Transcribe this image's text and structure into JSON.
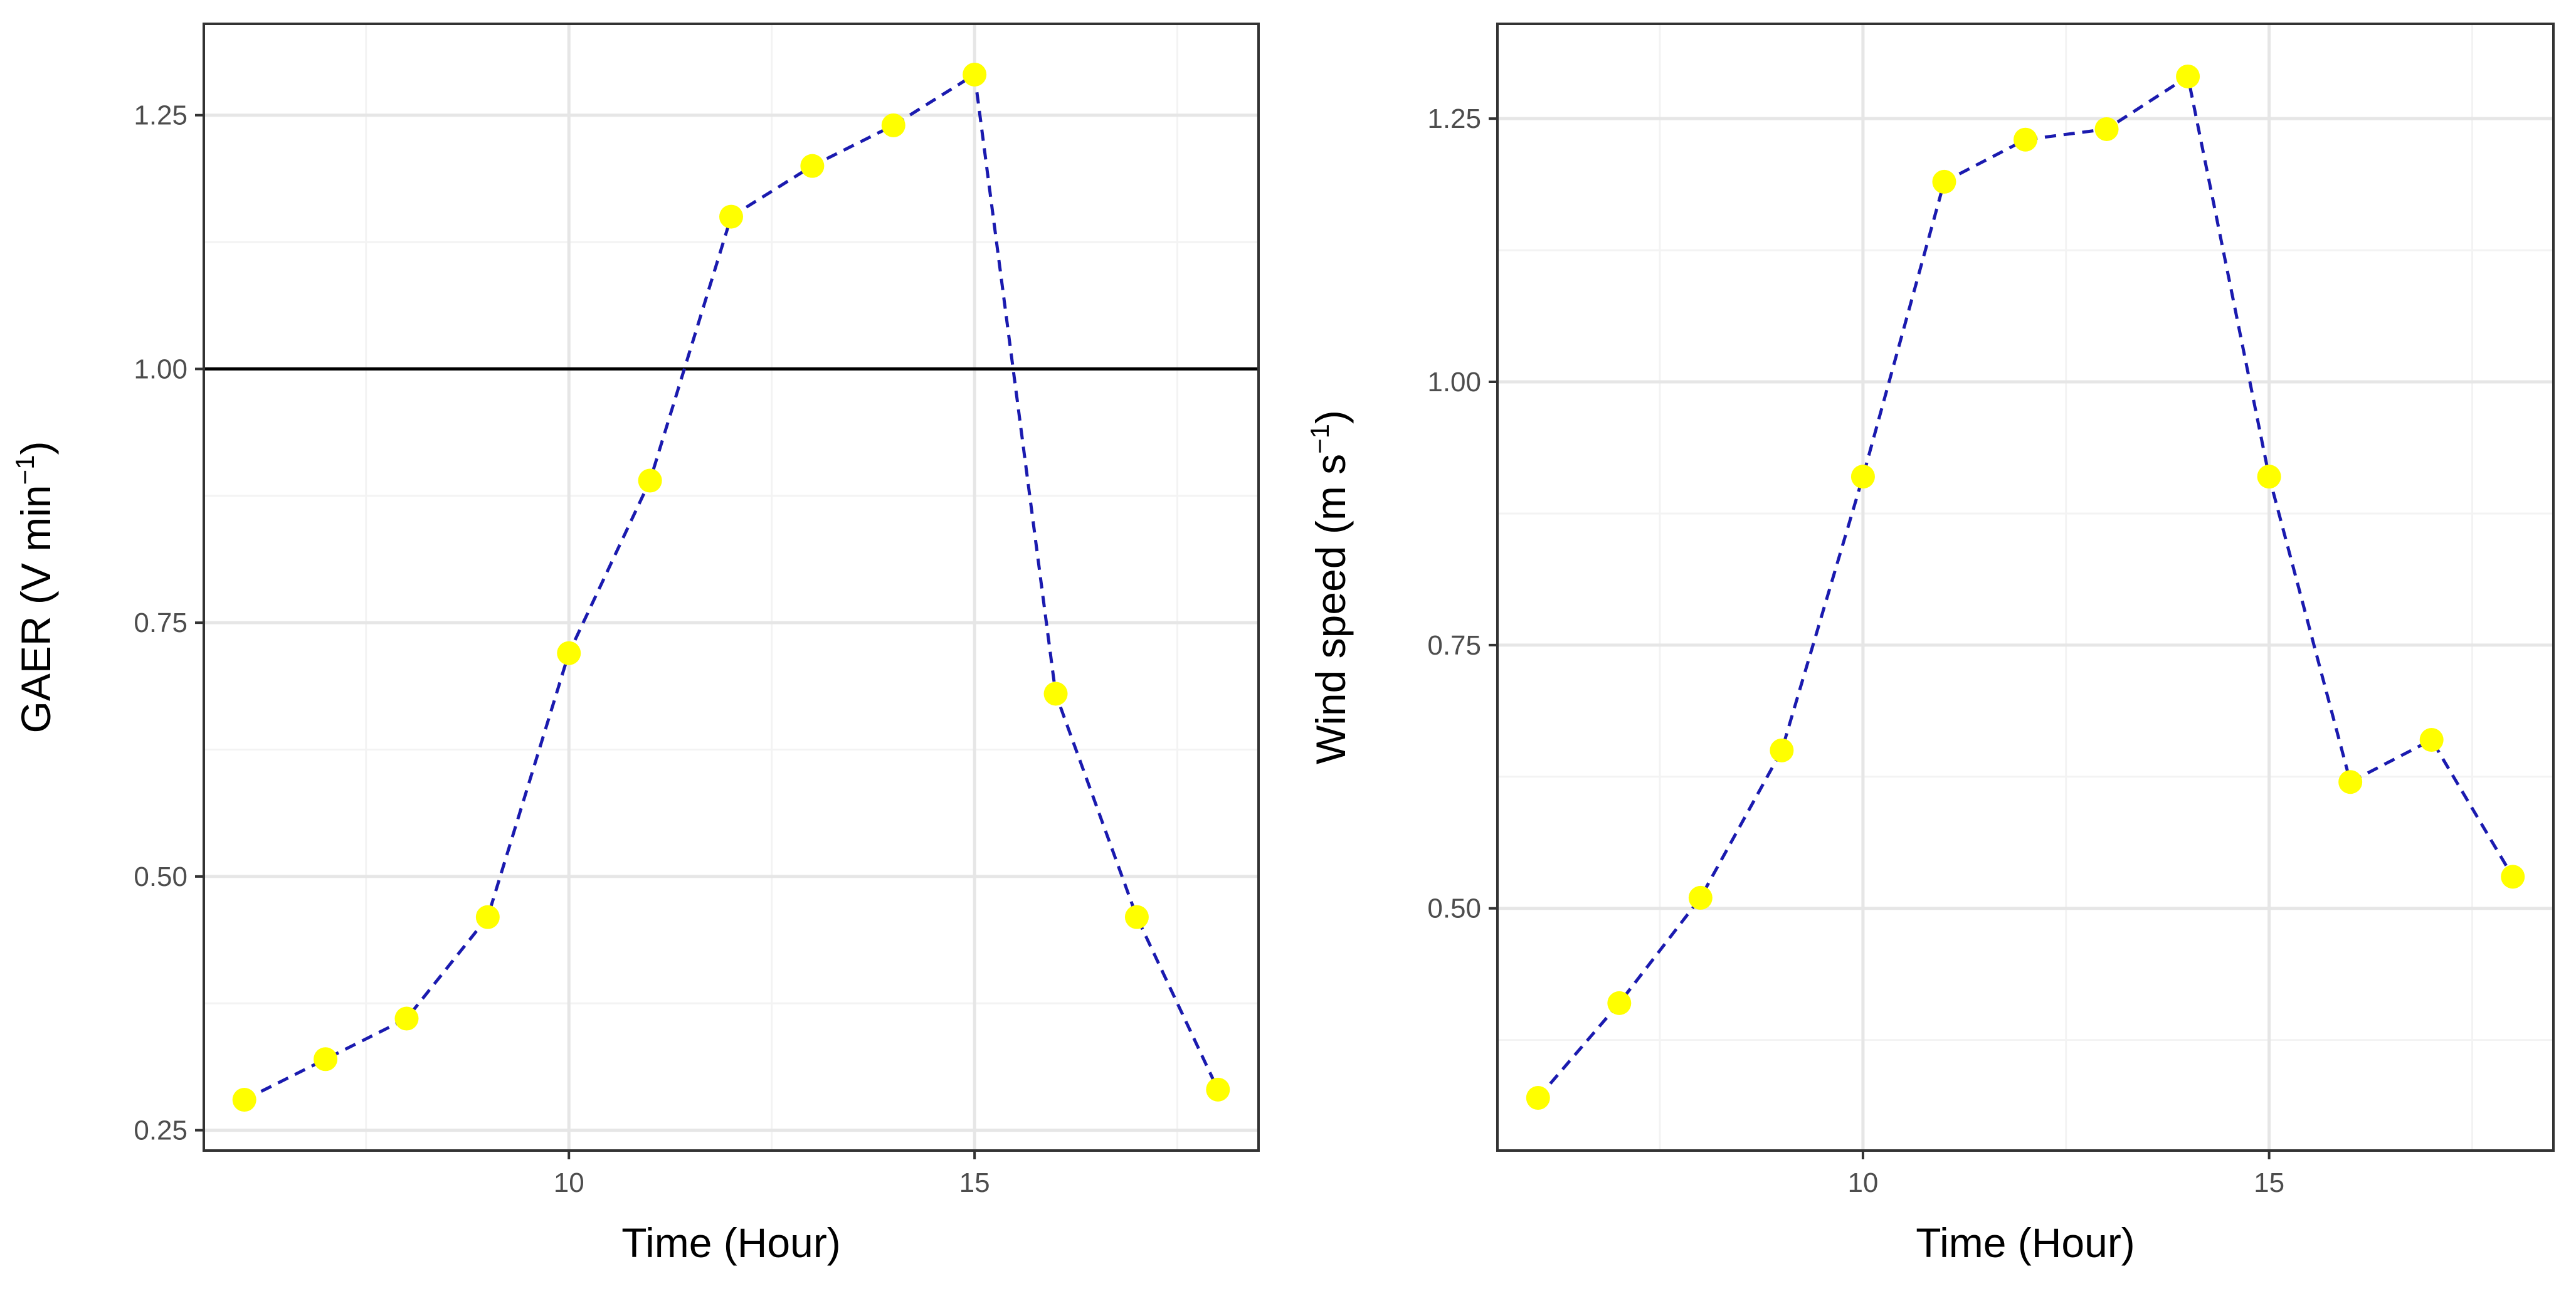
{
  "colors": {
    "line": "#1a1aaf",
    "point": "#ffff00",
    "grid_major": "#e6e6e6",
    "grid_minor": "#f3f3f3",
    "panel_border": "#333333",
    "reference_line": "#000000"
  },
  "chart_data": [
    {
      "type": "line",
      "title": "",
      "xlabel": "Time (Hour)",
      "ylabel": {
        "text": "GAER (V min",
        "sup": "−1",
        "close": ")"
      },
      "x": [
        6,
        7,
        8,
        9,
        10,
        11,
        12,
        13,
        14,
        15,
        16,
        17,
        18
      ],
      "series": [
        {
          "name": "GAER",
          "values": [
            0.28,
            0.32,
            0.36,
            0.46,
            0.72,
            0.89,
            1.15,
            1.2,
            1.24,
            1.29,
            0.68,
            0.46,
            0.29
          ]
        }
      ],
      "xlim": [
        5.5,
        18.5
      ],
      "ylim": [
        0.23,
        1.34
      ],
      "xticks": [
        10,
        15
      ],
      "xtick_labels": [
        "10",
        "15"
      ],
      "xminor": [
        7.5,
        12.5,
        17.5
      ],
      "yticks": [
        0.25,
        0.5,
        0.75,
        1.0,
        1.25
      ],
      "ytick_labels": [
        "0.25",
        "0.50",
        "0.75",
        "1.00",
        "1.25"
      ],
      "yminor": [
        0.375,
        0.625,
        0.875,
        1.125
      ],
      "hline": 1.0,
      "grid": true
    },
    {
      "type": "line",
      "title": "",
      "xlabel": "Time (Hour)",
      "ylabel": {
        "text": "Wind speed (m s",
        "sup": "−1",
        "close": ")"
      },
      "x": [
        6,
        7,
        8,
        9,
        10,
        11,
        12,
        13,
        14,
        15,
        16,
        17,
        18
      ],
      "series": [
        {
          "name": "Wind speed",
          "values": [
            0.32,
            0.41,
            0.51,
            0.65,
            0.91,
            1.19,
            1.23,
            1.24,
            1.29,
            0.91,
            0.62,
            0.66,
            0.53
          ]
        }
      ],
      "xlim": [
        5.5,
        18.5
      ],
      "ylim": [
        0.27,
        1.34
      ],
      "xticks": [
        10,
        15
      ],
      "xtick_labels": [
        "10",
        "15"
      ],
      "xminor": [
        7.5,
        12.5,
        17.5
      ],
      "yticks": [
        0.5,
        0.75,
        1.0,
        1.25
      ],
      "ytick_labels": [
        "0.50",
        "0.75",
        "1.00",
        "1.25"
      ],
      "yminor": [
        0.375,
        0.625,
        0.875,
        1.125
      ],
      "grid": true
    }
  ]
}
